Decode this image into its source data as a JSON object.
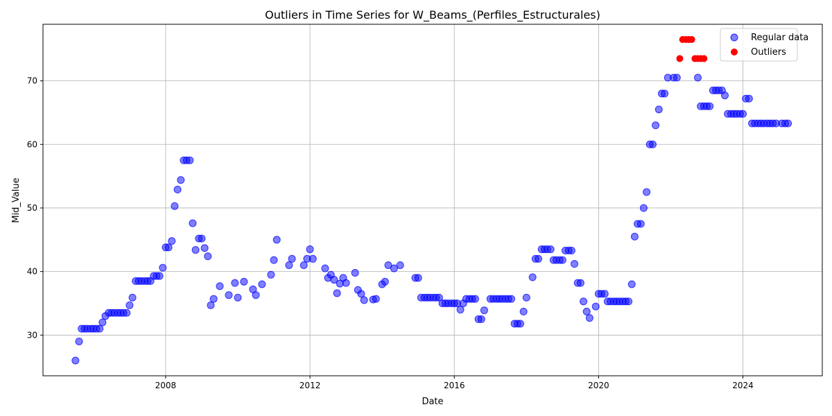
{
  "chart_data": {
    "type": "scatter",
    "title": "Outliers in Time Series for W_Beams_(Perfiles_Estructurales)",
    "xlabel": "Date",
    "ylabel": "Mid_Value",
    "xlim": [
      2004.6,
      2026.2
    ],
    "ylim": [
      23.6,
      78.9
    ],
    "xticks": [
      2008,
      2012,
      2016,
      2020,
      2024
    ],
    "yticks": [
      30,
      40,
      50,
      60,
      70
    ],
    "grid": true,
    "legend_position": "top-right",
    "series": [
      {
        "name": "Regular data",
        "color": "#0000ff",
        "points": [
          [
            2005.5,
            26.0
          ],
          [
            2005.6,
            29.0
          ],
          [
            2005.67,
            31.0
          ],
          [
            2005.75,
            31.0
          ],
          [
            2005.83,
            31.0
          ],
          [
            2005.92,
            31.0
          ],
          [
            2006.0,
            31.0
          ],
          [
            2006.08,
            31.0
          ],
          [
            2006.17,
            31.0
          ],
          [
            2006.25,
            32.0
          ],
          [
            2006.33,
            33.0
          ],
          [
            2006.42,
            33.5
          ],
          [
            2006.5,
            33.5
          ],
          [
            2006.58,
            33.5
          ],
          [
            2006.67,
            33.5
          ],
          [
            2006.75,
            33.5
          ],
          [
            2006.83,
            33.5
          ],
          [
            2006.92,
            33.5
          ],
          [
            2007.0,
            34.7
          ],
          [
            2007.08,
            35.9
          ],
          [
            2007.17,
            38.5
          ],
          [
            2007.25,
            38.5
          ],
          [
            2007.33,
            38.5
          ],
          [
            2007.42,
            38.5
          ],
          [
            2007.5,
            38.5
          ],
          [
            2007.58,
            38.5
          ],
          [
            2007.67,
            39.3
          ],
          [
            2007.75,
            39.3
          ],
          [
            2007.83,
            39.3
          ],
          [
            2007.92,
            40.6
          ],
          [
            2008.0,
            43.8
          ],
          [
            2008.08,
            43.8
          ],
          [
            2008.17,
            44.8
          ],
          [
            2008.25,
            50.3
          ],
          [
            2008.33,
            52.9
          ],
          [
            2008.42,
            54.4
          ],
          [
            2008.5,
            57.5
          ],
          [
            2008.58,
            57.5
          ],
          [
            2008.67,
            57.5
          ],
          [
            2008.75,
            47.6
          ],
          [
            2008.83,
            43.4
          ],
          [
            2008.92,
            45.2
          ],
          [
            2009.0,
            45.2
          ],
          [
            2009.08,
            43.7
          ],
          [
            2009.17,
            42.4
          ],
          [
            2009.25,
            34.7
          ],
          [
            2009.33,
            35.7
          ],
          [
            2009.5,
            37.7
          ],
          [
            2009.75,
            36.3
          ],
          [
            2009.92,
            38.2
          ],
          [
            2010.0,
            35.9
          ],
          [
            2010.17,
            38.4
          ],
          [
            2010.42,
            37.2
          ],
          [
            2010.5,
            36.3
          ],
          [
            2010.67,
            38.0
          ],
          [
            2010.92,
            39.5
          ],
          [
            2011.0,
            41.8
          ],
          [
            2011.08,
            45.0
          ],
          [
            2011.42,
            41.0
          ],
          [
            2011.5,
            42.0
          ],
          [
            2011.83,
            41.0
          ],
          [
            2011.92,
            42.0
          ],
          [
            2012.0,
            43.5
          ],
          [
            2012.08,
            42.0
          ],
          [
            2012.42,
            40.5
          ],
          [
            2012.5,
            39.0
          ],
          [
            2012.58,
            39.5
          ],
          [
            2012.67,
            38.7
          ],
          [
            2012.75,
            36.6
          ],
          [
            2012.83,
            38.1
          ],
          [
            2012.92,
            39.0
          ],
          [
            2013.0,
            38.2
          ],
          [
            2013.25,
            39.8
          ],
          [
            2013.33,
            37.1
          ],
          [
            2013.42,
            36.5
          ],
          [
            2013.5,
            35.5
          ],
          [
            2013.75,
            35.6
          ],
          [
            2013.83,
            35.7
          ],
          [
            2014.0,
            38.0
          ],
          [
            2014.08,
            38.4
          ],
          [
            2014.17,
            41.0
          ],
          [
            2014.33,
            40.5
          ],
          [
            2014.5,
            41.0
          ],
          [
            2014.92,
            39.0
          ],
          [
            2015.0,
            39.0
          ],
          [
            2015.08,
            35.9
          ],
          [
            2015.17,
            35.9
          ],
          [
            2015.25,
            35.9
          ],
          [
            2015.33,
            35.9
          ],
          [
            2015.42,
            35.9
          ],
          [
            2015.5,
            35.9
          ],
          [
            2015.58,
            35.9
          ],
          [
            2015.67,
            35.0
          ],
          [
            2015.75,
            35.0
          ],
          [
            2015.83,
            35.0
          ],
          [
            2015.92,
            35.0
          ],
          [
            2016.0,
            35.0
          ],
          [
            2016.08,
            35.0
          ],
          [
            2016.17,
            34.0
          ],
          [
            2016.25,
            35.0
          ],
          [
            2016.33,
            35.7
          ],
          [
            2016.42,
            35.7
          ],
          [
            2016.5,
            35.7
          ],
          [
            2016.58,
            35.7
          ],
          [
            2016.67,
            32.5
          ],
          [
            2016.75,
            32.5
          ],
          [
            2016.83,
            33.9
          ],
          [
            2017.0,
            35.7
          ],
          [
            2017.08,
            35.7
          ],
          [
            2017.17,
            35.7
          ],
          [
            2017.25,
            35.7
          ],
          [
            2017.33,
            35.7
          ],
          [
            2017.42,
            35.7
          ],
          [
            2017.5,
            35.7
          ],
          [
            2017.58,
            35.7
          ],
          [
            2017.67,
            31.8
          ],
          [
            2017.75,
            31.8
          ],
          [
            2017.83,
            31.8
          ],
          [
            2017.92,
            33.7
          ],
          [
            2018.0,
            35.9
          ],
          [
            2018.17,
            39.1
          ],
          [
            2018.25,
            42.0
          ],
          [
            2018.33,
            42.0
          ],
          [
            2018.42,
            43.5
          ],
          [
            2018.5,
            43.5
          ],
          [
            2018.58,
            43.5
          ],
          [
            2018.67,
            43.5
          ],
          [
            2018.75,
            41.8
          ],
          [
            2018.83,
            41.8
          ],
          [
            2018.92,
            41.8
          ],
          [
            2019.0,
            41.8
          ],
          [
            2019.08,
            43.3
          ],
          [
            2019.17,
            43.3
          ],
          [
            2019.25,
            43.3
          ],
          [
            2019.33,
            41.2
          ],
          [
            2019.42,
            38.2
          ],
          [
            2019.5,
            38.2
          ],
          [
            2019.58,
            35.3
          ],
          [
            2019.67,
            33.7
          ],
          [
            2019.75,
            32.7
          ],
          [
            2019.92,
            34.5
          ],
          [
            2020.0,
            36.5
          ],
          [
            2020.08,
            36.5
          ],
          [
            2020.17,
            36.5
          ],
          [
            2020.25,
            35.3
          ],
          [
            2020.33,
            35.3
          ],
          [
            2020.42,
            35.3
          ],
          [
            2020.5,
            35.3
          ],
          [
            2020.58,
            35.3
          ],
          [
            2020.67,
            35.3
          ],
          [
            2020.75,
            35.3
          ],
          [
            2020.83,
            35.3
          ],
          [
            2020.92,
            38.0
          ],
          [
            2021.0,
            45.5
          ],
          [
            2021.08,
            47.5
          ],
          [
            2021.17,
            47.5
          ],
          [
            2021.25,
            50.0
          ],
          [
            2021.33,
            52.5
          ],
          [
            2021.42,
            60.0
          ],
          [
            2021.5,
            60.0
          ],
          [
            2021.58,
            63.0
          ],
          [
            2021.67,
            65.5
          ],
          [
            2021.75,
            68.0
          ],
          [
            2021.83,
            68.0
          ],
          [
            2021.92,
            70.5
          ],
          [
            2022.08,
            70.5
          ],
          [
            2022.17,
            70.5
          ],
          [
            2022.75,
            70.5
          ],
          [
            2022.83,
            66.0
          ],
          [
            2022.92,
            66.0
          ],
          [
            2023.0,
            66.0
          ],
          [
            2023.08,
            66.0
          ],
          [
            2023.17,
            68.5
          ],
          [
            2023.25,
            68.5
          ],
          [
            2023.33,
            68.5
          ],
          [
            2023.42,
            68.5
          ],
          [
            2023.5,
            67.7
          ],
          [
            2023.58,
            64.8
          ],
          [
            2023.67,
            64.8
          ],
          [
            2023.75,
            64.8
          ],
          [
            2023.83,
            64.8
          ],
          [
            2023.92,
            64.8
          ],
          [
            2024.0,
            64.8
          ],
          [
            2024.08,
            67.2
          ],
          [
            2024.17,
            67.2
          ],
          [
            2024.25,
            63.3
          ],
          [
            2024.33,
            63.3
          ],
          [
            2024.42,
            63.3
          ],
          [
            2024.5,
            63.3
          ],
          [
            2024.58,
            63.3
          ],
          [
            2024.67,
            63.3
          ],
          [
            2024.75,
            63.3
          ],
          [
            2024.83,
            63.3
          ],
          [
            2024.92,
            63.3
          ],
          [
            2025.08,
            63.3
          ],
          [
            2025.17,
            63.3
          ],
          [
            2025.25,
            63.3
          ]
        ]
      },
      {
        "name": "Outliers",
        "color": "#ff0000",
        "points": [
          [
            2022.25,
            73.5
          ],
          [
            2022.33,
            76.5
          ],
          [
            2022.42,
            76.5
          ],
          [
            2022.5,
            76.5
          ],
          [
            2022.58,
            76.5
          ],
          [
            2022.67,
            73.5
          ],
          [
            2022.75,
            73.5
          ],
          [
            2022.83,
            73.5
          ],
          [
            2022.92,
            73.5
          ]
        ]
      }
    ]
  }
}
